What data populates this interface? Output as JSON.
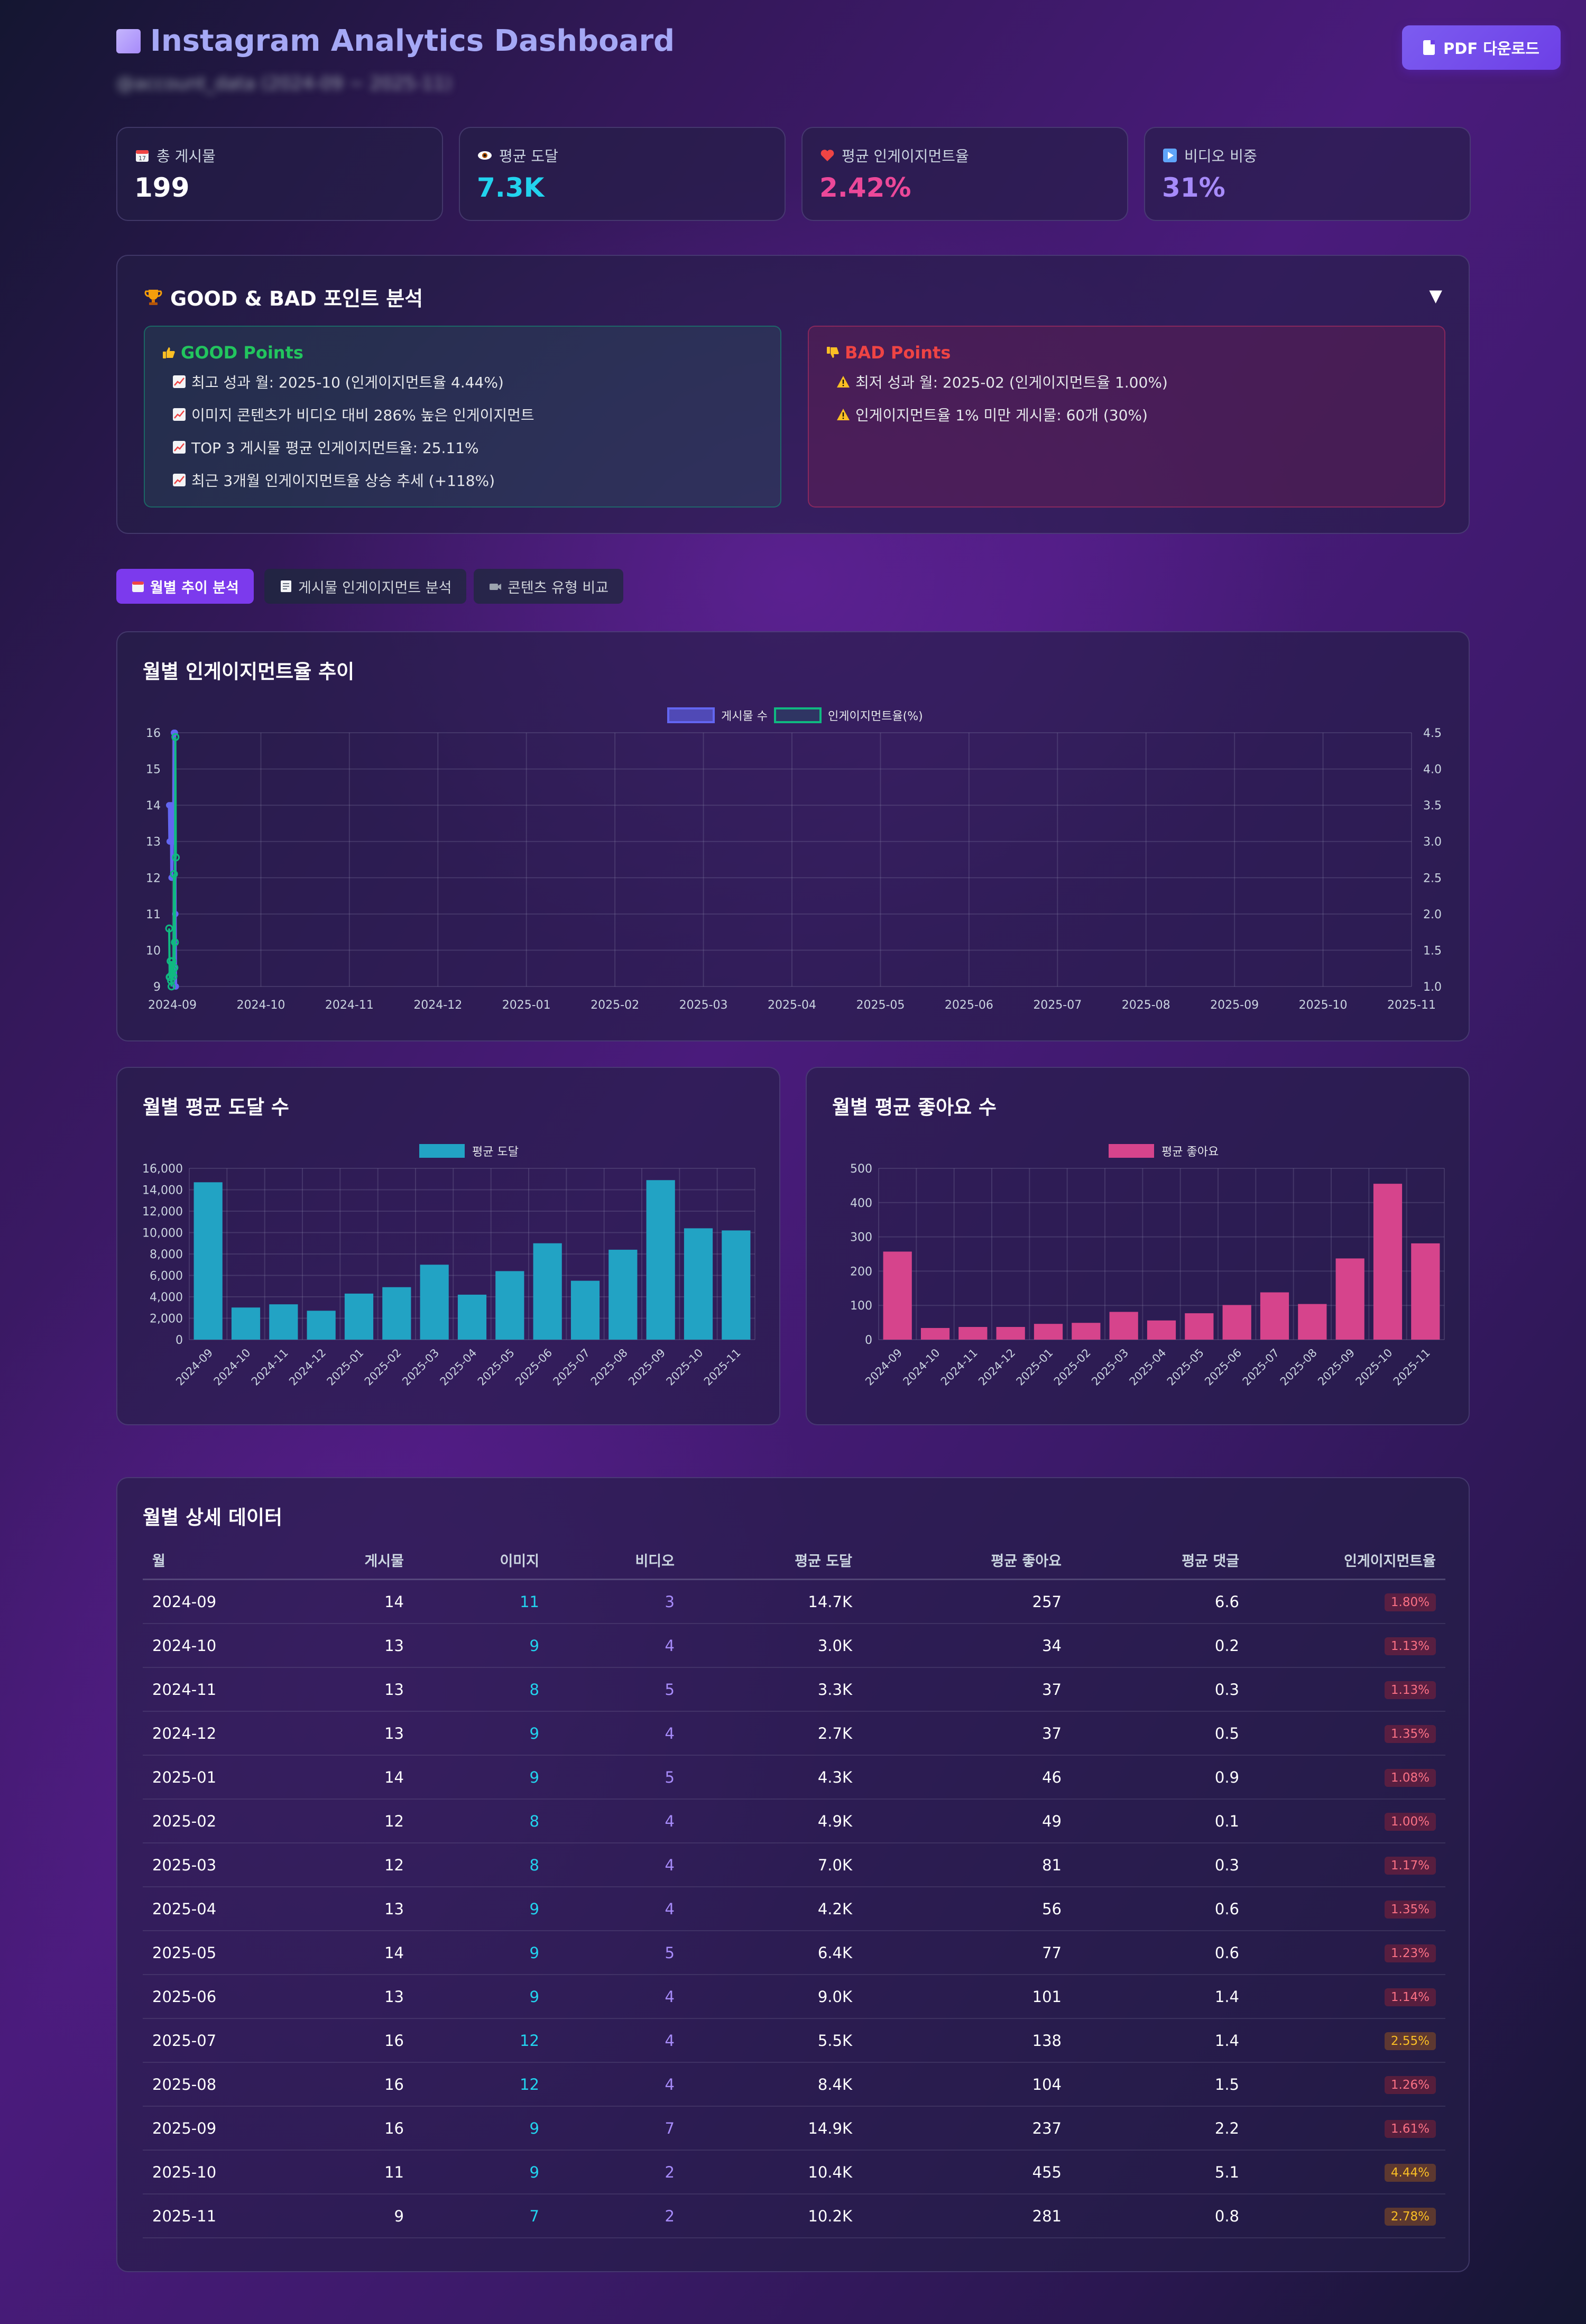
{
  "header": {
    "title": "Instagram Analytics Dashboard",
    "subtitle": "@account_data (2024-09 ~ 2025-11)",
    "pdf_button": "PDF 다운로드"
  },
  "stats": [
    {
      "label": "총 게시물",
      "value": "199",
      "color": "#ffffff",
      "icon": "calendar-icon"
    },
    {
      "label": "평균 도달",
      "value": "7.3K",
      "color": "#22d3ee",
      "icon": "eye-icon"
    },
    {
      "label": "평균 인게이지먼트율",
      "value": "2.42%",
      "color": "#ec4899",
      "icon": "heart-icon"
    },
    {
      "label": "비디오 비중",
      "value": "31%",
      "color": "#a78bfa",
      "icon": "play-icon"
    }
  ],
  "analysis": {
    "title": "GOOD & BAD 포인트 분석",
    "toggle": "▼",
    "good": {
      "title": "GOOD Points",
      "color": "#22c55e",
      "items": [
        "최고 성과 월: 2025-10 (인게이지먼트율 4.44%)",
        "이미지 콘텐츠가 비디오 대비 286% 높은 인게이지먼트",
        "TOP 3 게시물 평균 인게이지먼트율: 25.11%",
        "최근 3개월 인게이지먼트율 상승 추세 (+118%)"
      ]
    },
    "bad": {
      "title": "BAD Points",
      "color": "#ef4444",
      "items": [
        "최저 성과 월: 2025-02 (인게이지먼트율 1.00%)",
        "인게이지먼트율 1% 미만 게시물: 60개 (30%)"
      ]
    }
  },
  "tabs": [
    "월별 추이 분석",
    "게시물 인게이지먼트 분석",
    "콘텐츠 유형 비교"
  ],
  "chart_data": [
    {
      "type": "line",
      "title": "월별 인게이지먼트율 추이",
      "x_ticks": [
        "2024-09",
        "2024-10",
        "2024-11",
        "2024-12",
        "2025-01",
        "2025-02",
        "2025-03",
        "2025-04",
        "2025-05",
        "2025-06",
        "2025-07",
        "2025-08",
        "2025-09",
        "2025-10",
        "2025-11"
      ],
      "ylim_left": [
        9,
        16
      ],
      "ylim_right": [
        1.0,
        4.5
      ],
      "y_ticks_left": [
        9,
        10,
        11,
        12,
        13,
        14,
        15,
        16
      ],
      "y_ticks_right": [
        "1.0",
        "1.5",
        "2.0",
        "2.5",
        "3.0",
        "3.5",
        "4.0",
        "4.5"
      ],
      "grid": true,
      "legend": "top-center",
      "series": [
        {
          "name": "게시물 수",
          "axis": "left",
          "color": "#6366f1",
          "values": [
            14,
            13,
            13,
            13,
            14,
            12,
            12,
            13,
            14,
            13,
            16,
            16,
            16,
            11,
            9
          ]
        },
        {
          "name": "인게이지먼트율(%)",
          "axis": "right",
          "color": "#10b981",
          "values": [
            1.8,
            1.13,
            1.13,
            1.35,
            1.08,
            1.0,
            1.17,
            1.35,
            1.23,
            1.14,
            2.55,
            1.26,
            1.61,
            4.44,
            2.78
          ]
        }
      ]
    },
    {
      "type": "bar",
      "title": "월별 평균 도달 수",
      "categories": [
        "2024-09",
        "2024-10",
        "2024-11",
        "2024-12",
        "2025-01",
        "2025-02",
        "2025-03",
        "2025-04",
        "2025-05",
        "2025-06",
        "2025-07",
        "2025-08",
        "2025-09",
        "2025-10",
        "2025-11"
      ],
      "ylim": [
        0,
        16000
      ],
      "y_ticks": [
        "0",
        "2,000",
        "4,000",
        "6,000",
        "8,000",
        "10,000",
        "12,000",
        "14,000",
        "16,000"
      ],
      "grid": true,
      "legend": "top-center",
      "series": [
        {
          "name": "평균 도달",
          "color": "#22a3c4",
          "values": [
            14700,
            3000,
            3300,
            2700,
            4300,
            4900,
            7000,
            4200,
            6400,
            9000,
            5500,
            8400,
            14900,
            10400,
            10200
          ]
        }
      ]
    },
    {
      "type": "bar",
      "title": "월별 평균 좋아요 수",
      "categories": [
        "2024-09",
        "2024-10",
        "2024-11",
        "2024-12",
        "2025-01",
        "2025-02",
        "2025-03",
        "2025-04",
        "2025-05",
        "2025-06",
        "2025-07",
        "2025-08",
        "2025-09",
        "2025-10",
        "2025-11"
      ],
      "ylim": [
        0,
        500
      ],
      "y_ticks": [
        "0",
        "100",
        "200",
        "300",
        "400",
        "500"
      ],
      "grid": true,
      "legend": "top-center",
      "series": [
        {
          "name": "평균 좋아요",
          "color": "#d6448c",
          "values": [
            257,
            34,
            37,
            37,
            46,
            49,
            81,
            56,
            77,
            101,
            138,
            104,
            237,
            455,
            281
          ]
        }
      ]
    }
  ],
  "table": {
    "title": "월별 상세 데이터",
    "headers": [
      "월",
      "게시물",
      "이미지",
      "비디오",
      "평균 도달",
      "평균 좋아요",
      "평균 댓글",
      "인게이지먼트율"
    ],
    "rows": [
      [
        "2024-09",
        "14",
        "11",
        "3",
        "14.7K",
        "257",
        "6.6",
        "1.80%"
      ],
      [
        "2024-10",
        "13",
        "9",
        "4",
        "3.0K",
        "34",
        "0.2",
        "1.13%"
      ],
      [
        "2024-11",
        "13",
        "8",
        "5",
        "3.3K",
        "37",
        "0.3",
        "1.13%"
      ],
      [
        "2024-12",
        "13",
        "9",
        "4",
        "2.7K",
        "37",
        "0.5",
        "1.35%"
      ],
      [
        "2025-01",
        "14",
        "9",
        "5",
        "4.3K",
        "46",
        "0.9",
        "1.08%"
      ],
      [
        "2025-02",
        "12",
        "8",
        "4",
        "4.9K",
        "49",
        "0.1",
        "1.00%"
      ],
      [
        "2025-03",
        "12",
        "8",
        "4",
        "7.0K",
        "81",
        "0.3",
        "1.17%"
      ],
      [
        "2025-04",
        "13",
        "9",
        "4",
        "4.2K",
        "56",
        "0.6",
        "1.35%"
      ],
      [
        "2025-05",
        "14",
        "9",
        "5",
        "6.4K",
        "77",
        "0.6",
        "1.23%"
      ],
      [
        "2025-06",
        "13",
        "9",
        "4",
        "9.0K",
        "101",
        "1.4",
        "1.14%"
      ],
      [
        "2025-07",
        "16",
        "12",
        "4",
        "5.5K",
        "138",
        "1.4",
        "2.55%"
      ],
      [
        "2025-08",
        "16",
        "12",
        "4",
        "8.4K",
        "104",
        "1.5",
        "1.26%"
      ],
      [
        "2025-09",
        "16",
        "9",
        "7",
        "14.9K",
        "237",
        "2.2",
        "1.61%"
      ],
      [
        "2025-10",
        "11",
        "9",
        "2",
        "10.4K",
        "455",
        "5.1",
        "4.44%"
      ],
      [
        "2025-11",
        "9",
        "7",
        "2",
        "10.2K",
        "281",
        "0.8",
        "2.78%"
      ]
    ]
  }
}
